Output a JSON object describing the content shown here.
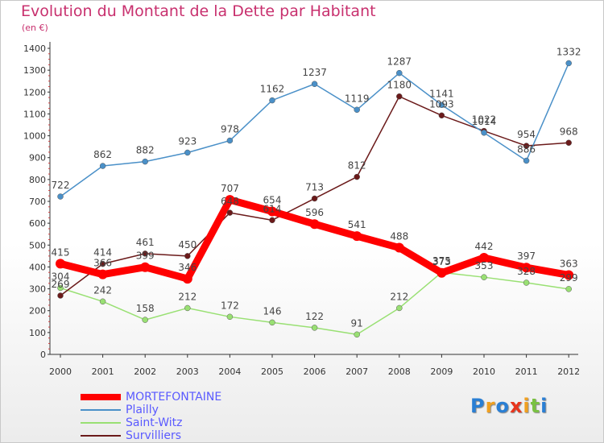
{
  "chart_data": {
    "type": "line",
    "title": "Evolution du Montant de la Dette par Habitant",
    "subtitle": "(en €)",
    "x": [
      "2000",
      "2001",
      "2002",
      "2003",
      "2004",
      "2005",
      "2006",
      "2007",
      "2008",
      "2009",
      "2010",
      "2011",
      "2012"
    ],
    "ylim": [
      0,
      1400
    ],
    "yticks": [
      0,
      100,
      200,
      300,
      400,
      500,
      600,
      700,
      800,
      900,
      1000,
      1100,
      1200,
      1300,
      1400
    ],
    "grid": false,
    "legend": "bottom-left",
    "series": [
      {
        "name": "MORTEFONTAINE",
        "color": "#ff0000",
        "values": [
          415,
          366,
          399,
          346,
          707,
          654,
          596,
          541,
          488,
          373,
          442,
          397,
          363
        ],
        "labels": [
          "415",
          "366",
          "399",
          "346",
          "707",
          "654",
          "596",
          "541",
          "488",
          "373",
          "442",
          "397",
          "363"
        ]
      },
      {
        "name": "Plailly",
        "color": "#4a90c8",
        "values": [
          722,
          862,
          882,
          923,
          978,
          1162,
          1237,
          1119,
          1287,
          1141,
          1014,
          886,
          1332
        ],
        "labels": [
          "722",
          "862",
          "882",
          "923",
          "978",
          "1162",
          "1237",
          "1119",
          "1287",
          "1141",
          "1014",
          "886",
          "1332"
        ]
      },
      {
        "name": "Saint-Witz",
        "color": "#99e073",
        "values": [
          304,
          242,
          158,
          212,
          172,
          146,
          122,
          91,
          212,
          375,
          353,
          328,
          299
        ],
        "labels": [
          "304",
          "242",
          "158",
          "212",
          "172",
          "146",
          "122",
          "91",
          "212",
          "375",
          "353",
          "328",
          "299"
        ]
      },
      {
        "name": "Survilliers",
        "color": "#6b1a1a",
        "values": [
          269,
          414,
          461,
          450,
          648,
          614,
          713,
          812,
          1180,
          1093,
          1022,
          954,
          968
        ],
        "labels": [
          "269",
          "414",
          "461",
          "450",
          "648",
          "614",
          "713",
          "812",
          "1180",
          "1093",
          "1022",
          "954",
          "968"
        ]
      }
    ]
  },
  "logo": {
    "letters": [
      "P",
      "r",
      "o",
      "x",
      "i",
      "t",
      "i"
    ],
    "colors": [
      "#2a7fd4",
      "#f0a020",
      "#2a7fd4",
      "#e8341c",
      "#f0a020",
      "#7ac143",
      "#2a7fd4"
    ]
  }
}
